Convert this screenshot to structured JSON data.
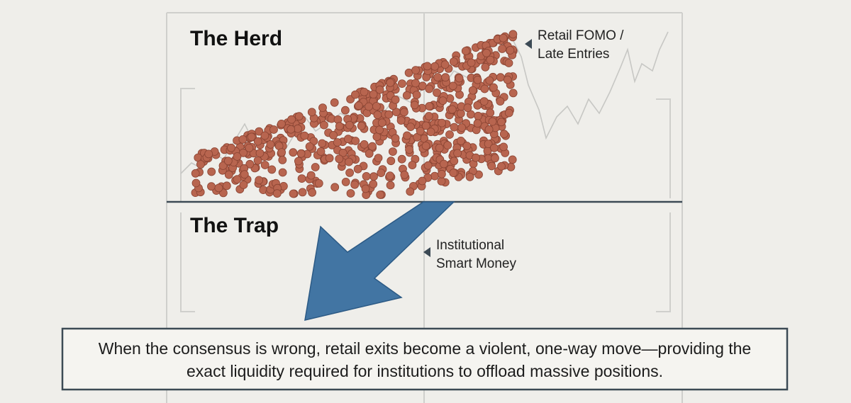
{
  "labels": {
    "herd": "The Herd",
    "trap": "The Trap",
    "retail": [
      "Retail FOMO /",
      "Late Entries"
    ],
    "institutional": [
      "Institutional",
      "Smart Money"
    ]
  },
  "caption": [
    "When the consensus is wrong, retail exits become a violent, one-way move—providing the",
    "exact liquidity required for institutions to offload massive positions."
  ]
}
